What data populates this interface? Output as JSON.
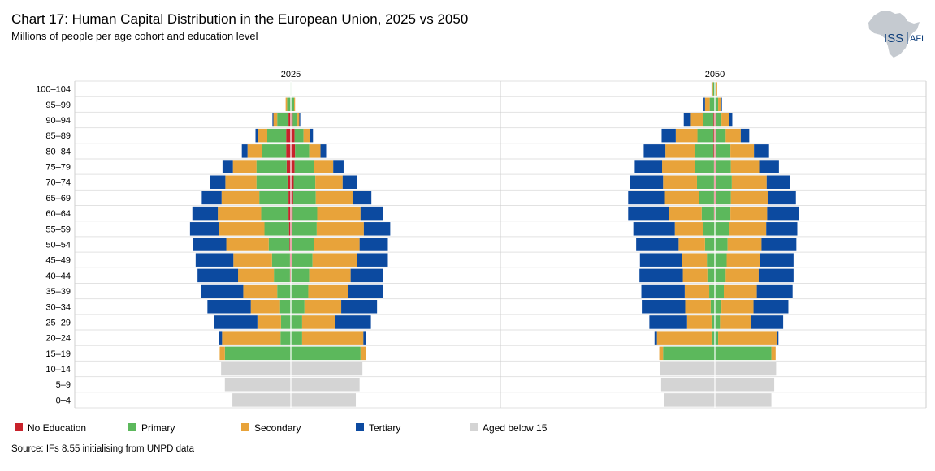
{
  "header": {
    "title": "Chart 17: Human Capital Distribution in the European Union, 2025 vs 2050",
    "subtitle": "Millions of people per age cohort and education level"
  },
  "logo": {
    "text_main": "ISS",
    "text_sub": "AFI"
  },
  "source": "Source: IFs 8.55 initialising from UNPD data",
  "colors": {
    "no_education": "#c8222b",
    "primary": "#5cb85c",
    "secondary": "#e8a33a",
    "tertiary": "#0c4aa0",
    "below15": "#d4d4d4"
  },
  "chart_data": {
    "type": "population-pyramid",
    "title": "Chart 17: Human Capital Distribution in the European Union, 2025 vs 2050",
    "units": "Millions of people",
    "categories": [
      "100–104",
      "95–99",
      "90–94",
      "85–89",
      "80–84",
      "75–79",
      "70–74",
      "65–69",
      "60–64",
      "55–59",
      "50–54",
      "45–49",
      "40–44",
      "35–39",
      "30–34",
      "25–29",
      "20–24",
      "15–19",
      "10–14",
      "5–9",
      "0–4"
    ],
    "segment_order": [
      "No Education",
      "Primary",
      "Secondary",
      "Tertiary",
      "Aged below 15"
    ],
    "legend": [
      "No Education",
      "Primary",
      "Secondary",
      "Tertiary",
      "Aged below 15"
    ],
    "x_extent": 15,
    "panels": [
      {
        "name": "2025",
        "left": {
          "No Education": [
            0,
            0.05,
            0.25,
            0.5,
            0.5,
            0.45,
            0.35,
            0.25,
            0.25,
            0.2,
            0.15,
            0.1,
            0.1,
            0.05,
            0.05,
            0.05,
            0,
            0,
            0,
            0,
            0
          ],
          "Primary": [
            0.05,
            0.35,
            1.2,
            2.0,
            2.6,
            3.2,
            3.3,
            3.1,
            2.9,
            2.6,
            2.2,
            1.9,
            1.7,
            1.4,
            1.1,
            1.0,
            1.1,
            7.0,
            0,
            0,
            0
          ],
          "Secondary": [
            0,
            0.15,
            0.4,
            0.95,
            1.5,
            2.5,
            3.3,
            4.0,
            4.6,
            4.8,
            4.5,
            4.1,
            3.8,
            3.6,
            3.1,
            2.5,
            6.2,
            0.55,
            0,
            0,
            0
          ],
          "Tertiary": [
            0,
            0,
            0.1,
            0.3,
            0.6,
            1.1,
            1.6,
            2.1,
            2.7,
            3.1,
            3.5,
            4.0,
            4.3,
            4.5,
            4.6,
            4.6,
            0.3,
            0,
            0,
            0,
            0
          ],
          "Aged below 15": [
            0,
            0,
            0,
            0,
            0,
            0,
            0,
            0,
            0,
            0,
            0,
            0,
            0,
            0,
            0,
            0,
            0,
            0,
            7.4,
            7.0,
            6.2
          ]
        },
        "right": {
          "No Education": [
            0,
            0.05,
            0.2,
            0.4,
            0.45,
            0.4,
            0.3,
            0.25,
            0.2,
            0.15,
            0.1,
            0.1,
            0.05,
            0.05,
            0.05,
            0,
            0,
            0,
            0,
            0,
            0
          ],
          "Primary": [
            0.05,
            0.3,
            0.5,
            0.95,
            1.5,
            2.1,
            2.3,
            2.4,
            2.6,
            2.6,
            2.4,
            2.2,
            1.9,
            1.8,
            1.4,
            1.2,
            1.2,
            7.4,
            0,
            0,
            0
          ],
          "Secondary": [
            0,
            0.1,
            0.2,
            0.65,
            1.2,
            2.0,
            2.9,
            3.9,
            4.6,
            5.0,
            4.8,
            4.7,
            4.4,
            4.2,
            3.9,
            3.5,
            6.5,
            0.55,
            0,
            0,
            0
          ],
          "Tertiary": [
            0,
            0,
            0.1,
            0.35,
            0.6,
            1.1,
            1.5,
            2.0,
            2.4,
            2.8,
            3.0,
            3.3,
            3.4,
            3.7,
            3.8,
            3.8,
            0.3,
            0,
            0,
            0,
            0
          ],
          "Aged below 15": [
            0,
            0,
            0,
            0,
            0,
            0,
            0,
            0,
            0,
            0,
            0,
            0,
            0,
            0,
            0,
            0,
            0,
            0,
            7.6,
            7.3,
            6.9
          ]
        }
      },
      {
        "name": "2050",
        "left": {
          "No Education": [
            0.05,
            0.05,
            0.15,
            0.15,
            0.15,
            0.1,
            0.1,
            0.1,
            0.1,
            0.05,
            0.05,
            0.05,
            0.05,
            0.05,
            0.05,
            0.05,
            0.05,
            0,
            0,
            0,
            0
          ],
          "Primary": [
            0.15,
            0.5,
            1.1,
            1.7,
            2.0,
            2.0,
            1.8,
            1.6,
            1.3,
            1.2,
            1.0,
            0.8,
            0.75,
            0.55,
            0.4,
            0.3,
            0.3,
            5.5,
            0,
            0,
            0
          ],
          "Secondary": [
            0.1,
            0.5,
            1.3,
            2.3,
            3.1,
            3.5,
            3.6,
            3.6,
            3.5,
            3.0,
            2.8,
            2.6,
            2.6,
            2.6,
            2.7,
            2.6,
            5.8,
            0.4,
            0,
            0,
            0
          ],
          "Tertiary": [
            0.05,
            0.15,
            0.75,
            1.5,
            2.3,
            2.9,
            3.5,
            3.9,
            4.3,
            4.4,
            4.5,
            4.5,
            4.6,
            4.6,
            4.6,
            4.0,
            0.25,
            0,
            0,
            0,
            0
          ],
          "Aged below 15": [
            0,
            0,
            0,
            0,
            0,
            0,
            0,
            0,
            0,
            0,
            0,
            0,
            0,
            0,
            0,
            0,
            0,
            0,
            5.8,
            5.7,
            5.4
          ]
        },
        "right": {
          "No Education": [
            0.05,
            0.05,
            0.1,
            0.15,
            0.15,
            0.1,
            0.1,
            0.1,
            0.05,
            0.05,
            0.05,
            0.05,
            0.05,
            0.05,
            0,
            0,
            0,
            0,
            0,
            0,
            0
          ],
          "Primary": [
            0.1,
            0.3,
            0.6,
            1.0,
            1.5,
            1.6,
            1.7,
            1.6,
            1.6,
            1.5,
            1.3,
            1.2,
            1.1,
            0.9,
            0.7,
            0.55,
            0.35,
            6.0,
            0,
            0,
            0
          ],
          "Secondary": [
            0.1,
            0.3,
            0.8,
            1.6,
            2.5,
            3.0,
            3.7,
            3.9,
            3.9,
            3.9,
            3.6,
            3.5,
            3.5,
            3.5,
            3.4,
            3.3,
            6.2,
            0.45,
            0,
            0,
            0
          ],
          "Tertiary": [
            0,
            0.1,
            0.35,
            0.9,
            1.6,
            2.1,
            2.5,
            3.0,
            3.4,
            3.3,
            3.7,
            3.6,
            3.7,
            3.8,
            3.7,
            3.4,
            0.2,
            0,
            0,
            0,
            0
          ],
          "Aged below 15": [
            0,
            0,
            0,
            0,
            0,
            0,
            0,
            0,
            0,
            0,
            0,
            0,
            0,
            0,
            0,
            0,
            0,
            0,
            6.5,
            6.3,
            6.0
          ]
        }
      }
    ]
  }
}
